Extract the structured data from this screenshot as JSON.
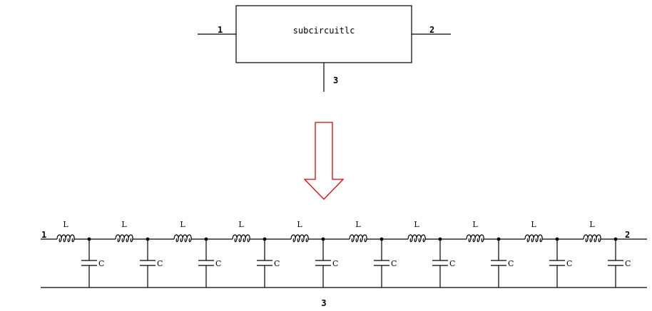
{
  "block": {
    "name": "subcircuitlc",
    "pin_left": "1",
    "pin_right": "2",
    "pin_bottom": "3"
  },
  "ladder": {
    "stages": 10,
    "inductor_label": "L",
    "capacitor_label": "C",
    "node_left": "1",
    "node_right": "2",
    "node_ground": "3"
  },
  "colors": {
    "wire": "#000000",
    "arrow": "#e00000",
    "background": "#ffffff"
  }
}
